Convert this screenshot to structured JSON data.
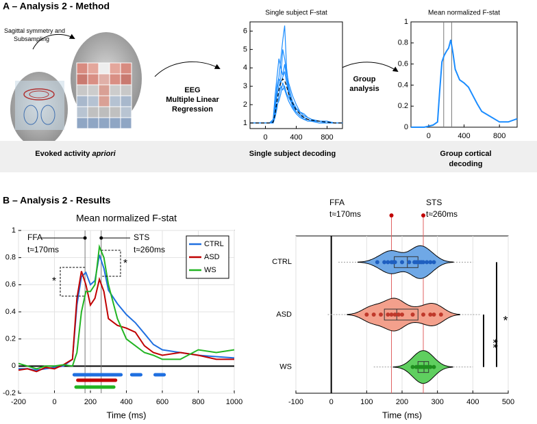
{
  "panel_a": {
    "title": "A – Analysis 2 - Method",
    "symmetry_label": [
      "Sagittal symmetry and",
      "Subsampling"
    ],
    "regression_label": [
      "EEG",
      "Multiple Linear",
      "Regression"
    ],
    "group_label": [
      "Group",
      "analysis"
    ],
    "evoked_label": "Evoked activity",
    "evoked_label_italic": "apriori",
    "single_caption": "Single subject decoding",
    "group_caption": [
      "Group cortical",
      "decoding"
    ]
  },
  "panel_b": {
    "title": "B – Analysis 2 - Results"
  },
  "chart_data": [
    {
      "type": "line",
      "title": "Single subject F-stat",
      "x": [
        -200,
        -150,
        -100,
        -50,
        0,
        50,
        100,
        125,
        150,
        175,
        200,
        225,
        250,
        275,
        300,
        350,
        400,
        450,
        500,
        550,
        600,
        700,
        800,
        900,
        1000
      ],
      "xlim": [
        -200,
        1000
      ],
      "xticks": [
        0,
        400,
        800
      ],
      "ylim": [
        0.7,
        6.5
      ],
      "yticks": [
        1,
        2,
        3,
        4,
        5,
        6
      ],
      "series": [
        {
          "color": "#1a8cff",
          "values": [
            1,
            1,
            1,
            1,
            1,
            1,
            1.1,
            2,
            3,
            3.5,
            4.5,
            5.5,
            6.3,
            4,
            3,
            2.2,
            1.8,
            1.5,
            1.3,
            1.2,
            1.1,
            1.1,
            1.1,
            1,
            1
          ]
        },
        {
          "color": "#1a8cff",
          "values": [
            1,
            1,
            1,
            1,
            1,
            1,
            1,
            1.5,
            2.5,
            3,
            3.5,
            5,
            4.5,
            3.8,
            3.2,
            2.5,
            2,
            1.6,
            1.4,
            1.3,
            1.2,
            1.1,
            1,
            1,
            1
          ]
        },
        {
          "color": "#1a8cff",
          "values": [
            1,
            1,
            1,
            1,
            1,
            1,
            1.2,
            2.5,
            3.5,
            4.5,
            4,
            3.6,
            4.2,
            3.5,
            2.8,
            2,
            1.6,
            1.4,
            1.2,
            1.1,
            1.1,
            1,
            1,
            1,
            1
          ]
        },
        {
          "color": "#1a8cff",
          "values": [
            1,
            1,
            1,
            1,
            1,
            1,
            1,
            1.3,
            1.8,
            2.5,
            3,
            2.8,
            3,
            2.6,
            2.4,
            2,
            1.8,
            1.6,
            1.5,
            1.3,
            1.2,
            1.1,
            1.1,
            1,
            1
          ]
        },
        {
          "color": "#1a8cff",
          "values": [
            1,
            1,
            1,
            1,
            1,
            1,
            1.05,
            1.4,
            2,
            2.2,
            2.6,
            3.2,
            2.8,
            2.5,
            2.2,
            1.8,
            1.5,
            1.3,
            1.2,
            1.2,
            1.1,
            1,
            1,
            1,
            1
          ]
        },
        {
          "color": "#1a8cff",
          "values": [
            1,
            1,
            1,
            1,
            1,
            1,
            1.1,
            1.8,
            2.8,
            3.4,
            3.2,
            3.5,
            3.8,
            3.2,
            2.6,
            1.9,
            1.6,
            1.4,
            1.3,
            1.2,
            1.1,
            1.1,
            1,
            1,
            1
          ]
        },
        {
          "color": "#000000",
          "style": "dashed",
          "values": [
            1,
            1,
            1,
            1,
            1,
            1,
            1.05,
            1.5,
            2.2,
            2.8,
            3.2,
            3.4,
            3.3,
            3,
            2.6,
            2.1,
            1.7,
            1.5,
            1.3,
            1.2,
            1.15,
            1.1,
            1.05,
            1,
            1
          ]
        }
      ]
    },
    {
      "type": "line",
      "title": "Mean normalized F-stat",
      "x": [
        -200,
        -150,
        -100,
        -50,
        0,
        50,
        100,
        125,
        150,
        175,
        200,
        225,
        250,
        275,
        300,
        350,
        400,
        450,
        500,
        550,
        600,
        700,
        800,
        900,
        1000
      ],
      "xlim": [
        -200,
        1000
      ],
      "xticks": [
        0,
        400,
        800
      ],
      "ylim": [
        0,
        1
      ],
      "yticks": [
        0,
        0.2,
        0.4,
        0.6,
        0.8,
        1
      ],
      "markers": [
        170,
        260
      ],
      "series": [
        {
          "color": "#1a8cff",
          "values": [
            0,
            0,
            0,
            0,
            0.01,
            0.02,
            0.05,
            0.35,
            0.62,
            0.68,
            0.72,
            0.75,
            0.83,
            0.7,
            0.55,
            0.45,
            0.42,
            0.38,
            0.3,
            0.22,
            0.15,
            0.1,
            0.05,
            0.05,
            0.08
          ]
        }
      ]
    },
    {
      "type": "line",
      "title": "Mean normalized F-stat",
      "x_label": "Time (ms)",
      "x": [
        -200,
        -150,
        -100,
        -50,
        0,
        50,
        100,
        125,
        150,
        175,
        200,
        225,
        250,
        275,
        300,
        350,
        400,
        450,
        500,
        550,
        600,
        700,
        800,
        900,
        1000
      ],
      "xlim": [
        -200,
        1000
      ],
      "xticks": [
        -200,
        0,
        200,
        400,
        600,
        800,
        1000
      ],
      "ylim": [
        -0.2,
        1
      ],
      "yticks": [
        -0.2,
        0,
        0.2,
        0.4,
        0.6,
        0.8,
        1
      ],
      "grid": true,
      "legend": "upper right",
      "markers": [
        170,
        260
      ],
      "annotations": [
        "FFA",
        "t≈170ms",
        "STS",
        "t≈260ms",
        "*",
        "*"
      ],
      "series": [
        {
          "name": "CTRL",
          "color": "#1f6fe0",
          "values": [
            -0.02,
            -0.02,
            -0.03,
            -0.02,
            -0.01,
            0,
            0.05,
            0.45,
            0.66,
            0.69,
            0.6,
            0.63,
            0.82,
            0.72,
            0.56,
            0.46,
            0.38,
            0.32,
            0.24,
            0.16,
            0.12,
            0.1,
            0.08,
            0.07,
            0.06
          ],
          "significance": [
            [
              110,
              370
            ],
            [
              430,
              480
            ],
            [
              560,
              610
            ]
          ]
        },
        {
          "name": "ASD",
          "color": "#c00000",
          "values": [
            -0.03,
            -0.02,
            -0.04,
            -0.01,
            -0.02,
            0.01,
            0.05,
            0.5,
            0.7,
            0.6,
            0.45,
            0.5,
            0.64,
            0.55,
            0.35,
            0.3,
            0.28,
            0.25,
            0.15,
            0.1,
            0.08,
            0.1,
            0.08,
            0.05,
            0.05
          ],
          "significance": [
            [
              130,
              340
            ]
          ]
        },
        {
          "name": "WS",
          "color": "#22b422",
          "values": [
            0.02,
            0,
            -0.02,
            0,
            0,
            0.01,
            0,
            0.1,
            0.4,
            0.55,
            0.55,
            0.6,
            0.88,
            0.8,
            0.6,
            0.35,
            0.2,
            0.15,
            0.1,
            0.08,
            0.05,
            0.05,
            0.12,
            0.1,
            0.12
          ],
          "significance": [
            [
              120,
              330
            ]
          ]
        }
      ]
    },
    {
      "type": "violin",
      "x_label": "Time (ms)",
      "xlim": [
        -100,
        500
      ],
      "xticks": [
        -100,
        0,
        100,
        200,
        300,
        400,
        500
      ],
      "grid": true,
      "categories": [
        "CTRL",
        "ASD",
        "WS"
      ],
      "markers": [
        170,
        260
      ],
      "annotations": [
        "FFA",
        "t≈170ms",
        "STS",
        "t≈260ms"
      ],
      "significance": [
        "*",
        "**"
      ],
      "groups": [
        {
          "color": "#6fa8e6",
          "point_color": "#1f5fc0",
          "points": [
            130,
            150,
            160,
            170,
            175,
            180,
            200,
            220,
            235,
            240,
            245,
            250,
            255,
            260,
            270,
            280,
            290
          ],
          "q1": 178,
          "median": 215,
          "q3": 245
        },
        {
          "color": "#f3a08c",
          "point_color": "#c0392b",
          "points": [
            100,
            120,
            140,
            160,
            170,
            180,
            190,
            200,
            230,
            260,
            280,
            290,
            310
          ],
          "q1": 150,
          "median": 185,
          "q3": 245
        },
        {
          "color": "#5fcf5f",
          "point_color": "#1f8f1f",
          "points": [
            230,
            240,
            245,
            250,
            255,
            260,
            265,
            270,
            275,
            280,
            290
          ],
          "q1": 245,
          "median": 262,
          "q3": 275
        }
      ]
    }
  ]
}
